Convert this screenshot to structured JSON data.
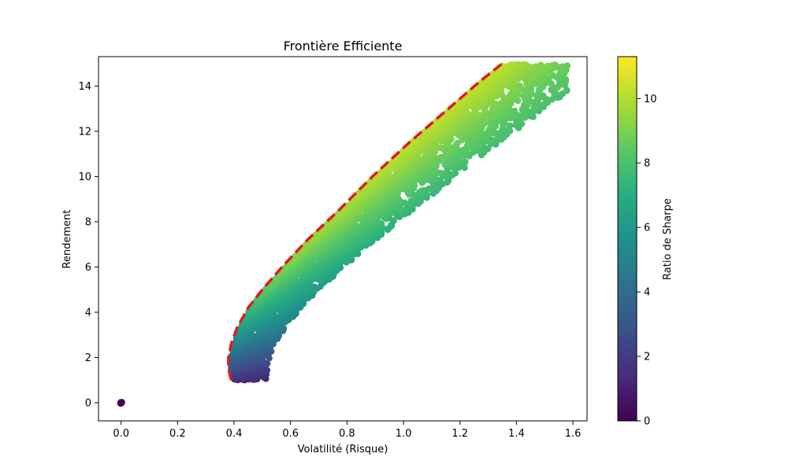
{
  "chart_data": {
    "type": "scatter",
    "title": "Frontière Efficiente",
    "xlabel": "Volatilité (Risque)",
    "ylabel": "Rendement",
    "xlim": [
      -0.08,
      1.65
    ],
    "ylim": [
      -0.8,
      15.3
    ],
    "xticks": [
      "0.0",
      "0.2",
      "0.4",
      "0.6",
      "0.8",
      "1.0",
      "1.2",
      "1.4",
      "1.6"
    ],
    "yticks": [
      "0",
      "2",
      "4",
      "6",
      "8",
      "10",
      "12",
      "14"
    ],
    "grid": false,
    "colormap": "viridis",
    "colorbar": {
      "label": "Ratio de Sharpe",
      "range": [
        0,
        11.3
      ],
      "ticks": [
        "0",
        "2",
        "4",
        "6",
        "8",
        "10"
      ]
    },
    "scatter_cloud": {
      "description_points": [
        {
          "x": 0.0,
          "y": 0.0,
          "sharpe": 0
        },
        {
          "x": 0.39,
          "y": 1.0,
          "sharpe": 2.5
        },
        {
          "x": 0.38,
          "y": 2.0,
          "sharpe": 5.2
        },
        {
          "x": 0.45,
          "y": 4.0,
          "sharpe": 8.9
        },
        {
          "x": 0.62,
          "y": 3.1,
          "sharpe": 5.0
        },
        {
          "x": 0.62,
          "y": 6.0,
          "sharpe": 9.7
        },
        {
          "x": 0.79,
          "y": 8.0,
          "sharpe": 10.1
        },
        {
          "x": 0.98,
          "y": 10.0,
          "sharpe": 10.2
        },
        {
          "x": 1.17,
          "y": 12.0,
          "sharpe": 10.3
        },
        {
          "x": 1.37,
          "y": 14.9,
          "sharpe": 10.9
        },
        {
          "x": 1.57,
          "y": 14.9,
          "sharpe": 9.5
        }
      ]
    },
    "frontier": {
      "style": "dashed",
      "color": "#e31a1c",
      "points": [
        {
          "x": 0.39,
          "y": 1.0
        },
        {
          "x": 0.38,
          "y": 1.5
        },
        {
          "x": 0.38,
          "y": 2.0
        },
        {
          "x": 0.39,
          "y": 2.6
        },
        {
          "x": 0.41,
          "y": 3.3
        },
        {
          "x": 0.45,
          "y": 4.2
        },
        {
          "x": 0.5,
          "y": 5.0
        },
        {
          "x": 0.57,
          "y": 6.0
        },
        {
          "x": 0.66,
          "y": 7.2
        },
        {
          "x": 0.77,
          "y": 8.5
        },
        {
          "x": 0.89,
          "y": 10.0
        },
        {
          "x": 1.02,
          "y": 11.5
        },
        {
          "x": 1.15,
          "y": 12.9
        },
        {
          "x": 1.27,
          "y": 14.2
        },
        {
          "x": 1.35,
          "y": 15.0
        }
      ]
    }
  }
}
